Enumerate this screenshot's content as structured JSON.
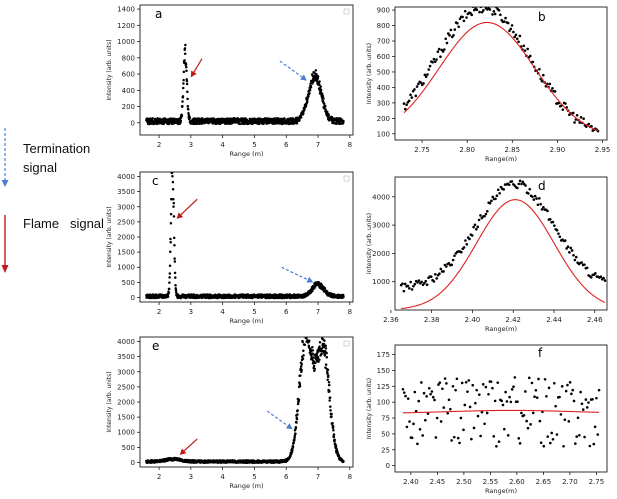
{
  "legend": {
    "termination_label_line1": "Termination",
    "termination_label_line2": "signal",
    "flame_label": "Flame   signal",
    "termination_color": "#4a7fd0",
    "flame_color": "#c01818"
  },
  "colors": {
    "dots": "#000000",
    "fit": "#e02020",
    "axis": "#000000"
  },
  "chart_data": [
    {
      "id": "a",
      "panel_label": "a",
      "type": "scatter",
      "xlabel": "Range (m)",
      "ylabel": "Intensity (arb. units)",
      "xlim": [
        1.4,
        8.1
      ],
      "ylim": [
        -150,
        1450
      ],
      "xticks": [
        2,
        3,
        4,
        5,
        6,
        7,
        8
      ],
      "xticklabels": [
        "2",
        "3",
        "4",
        "5",
        "6",
        "7",
        "8"
      ],
      "yticks": [
        0,
        200,
        400,
        600,
        800,
        1000,
        1200,
        1400
      ],
      "yticklabels": [
        "0",
        "200",
        "400",
        "600",
        "800",
        "1000",
        "1200",
        "1400"
      ],
      "signal": {
        "x_start": 1.6,
        "x_end": 7.8,
        "baseline": 20,
        "noise": 35,
        "peaks": [
          {
            "center": 2.82,
            "height": 870,
            "width": 0.05
          },
          {
            "center": 6.9,
            "height": 560,
            "width": 0.2
          }
        ]
      },
      "arrows": [
        {
          "kind": "flame",
          "tip": [
            3.0,
            560
          ],
          "tail": [
            3.35,
            790
          ]
        },
        {
          "kind": "termination",
          "tip": [
            6.65,
            520
          ],
          "tail": [
            5.8,
            760
          ]
        }
      ]
    },
    {
      "id": "b",
      "panel_label": "b",
      "type": "scatter",
      "xlabel": "Range(m)",
      "ylabel": "Intensity (arb. units)",
      "xlim": [
        2.72,
        2.955
      ],
      "ylim": [
        60,
        920
      ],
      "xticks": [
        2.75,
        2.8,
        2.85,
        2.9,
        2.95
      ],
      "xticklabels": [
        "2.75",
        "2.80",
        "2.85",
        "2.90",
        "2.95"
      ],
      "yticks": [
        100,
        200,
        300,
        400,
        500,
        600,
        700,
        800,
        900
      ],
      "yticklabels": [
        "100",
        "200",
        "300",
        "400",
        "500",
        "600",
        "700",
        "800",
        "900"
      ],
      "points": {
        "x_start": 2.73,
        "x_end": 2.945,
        "peak": 840,
        "center": 2.818,
        "sigma": 0.052,
        "offset": 80,
        "noise": 35
      },
      "fit": {
        "amplitude": 750,
        "center": 2.822,
        "sigma": 0.053,
        "offset": 70
      }
    },
    {
      "id": "c",
      "panel_label": "c",
      "type": "scatter",
      "xlabel": "Range (m)",
      "ylabel": "Intensity (arb. units)",
      "xlim": [
        1.4,
        8.1
      ],
      "ylim": [
        -150,
        4150
      ],
      "xticks": [
        2,
        3,
        4,
        5,
        6,
        7,
        8
      ],
      "xticklabels": [
        "2",
        "3",
        "4",
        "5",
        "6",
        "7",
        "8"
      ],
      "yticks": [
        0,
        500,
        1000,
        1500,
        2000,
        2500,
        3000,
        3500,
        4000
      ],
      "yticklabels": [
        "0",
        "500",
        "1000",
        "1500",
        "2000",
        "2500",
        "3000",
        "3500",
        "4000"
      ],
      "signal": {
        "x_start": 1.6,
        "x_end": 7.8,
        "baseline": 40,
        "noise": 60,
        "peaks": [
          {
            "center": 2.42,
            "height": 4300,
            "width": 0.045
          },
          {
            "center": 7.0,
            "height": 400,
            "width": 0.18
          }
        ]
      },
      "arrows": [
        {
          "kind": "flame",
          "tip": [
            2.55,
            2600
          ],
          "tail": [
            3.2,
            3250
          ]
        },
        {
          "kind": "termination",
          "tip": [
            6.85,
            500
          ],
          "tail": [
            5.85,
            1000
          ]
        }
      ]
    },
    {
      "id": "d",
      "panel_label": "d",
      "type": "scatter",
      "xlabel": "Range(m)",
      "ylabel": "Intensity (arb. units)",
      "xlim": [
        2.362,
        2.466
      ],
      "ylim": [
        0,
        4700
      ],
      "xticks": [
        2.36,
        2.38,
        2.4,
        2.42,
        2.44,
        2.46
      ],
      "xticklabels": [
        "2.36",
        "2.38",
        "2.40",
        "2.42",
        "2.44",
        "2.46"
      ],
      "yticks": [
        1000,
        2000,
        3000,
        4000
      ],
      "yticklabels": [
        "1000",
        "2000",
        "3000",
        "4000"
      ],
      "points": {
        "x_start": 2.365,
        "x_end": 2.465,
        "peak": 3700,
        "center": 2.421,
        "sigma": 0.019,
        "offset": 750,
        "noise": 150
      },
      "fit": {
        "amplitude": 3900,
        "center": 2.421,
        "sigma": 0.019,
        "offset": 0
      }
    },
    {
      "id": "e",
      "panel_label": "e",
      "type": "scatter",
      "xlabel": "Range (m)",
      "ylabel": "Intensity (arb. units)",
      "xlim": [
        1.4,
        8.1
      ],
      "ylim": [
        -150,
        4150
      ],
      "xticks": [
        2,
        3,
        4,
        5,
        6,
        7,
        8
      ],
      "xticklabels": [
        "2",
        "3",
        "4",
        "5",
        "6",
        "7",
        "8"
      ],
      "yticks": [
        0,
        500,
        1000,
        1500,
        2000,
        2500,
        3000,
        3500,
        4000
      ],
      "yticklabels": [
        "0",
        "500",
        "1000",
        "1500",
        "2000",
        "2500",
        "3000",
        "3500",
        "4000"
      ],
      "signal": {
        "x_start": 1.6,
        "x_end": 7.8,
        "baseline": 30,
        "noise": 40,
        "peaks": [
          {
            "center": 2.45,
            "height": 80,
            "width": 0.25
          },
          {
            "center": 6.62,
            "height": 4200,
            "width": 0.2
          },
          {
            "center": 7.15,
            "height": 3800,
            "width": 0.2
          }
        ]
      },
      "arrows": [
        {
          "kind": "flame",
          "tip": [
            2.65,
            250
          ],
          "tail": [
            3.2,
            780
          ]
        },
        {
          "kind": "termination",
          "tip": [
            6.2,
            1100
          ],
          "tail": [
            5.4,
            1700
          ]
        }
      ]
    },
    {
      "id": "f",
      "panel_label": "f",
      "type": "scatter",
      "xlabel": "Range(m)",
      "ylabel": "Intensity (arb. units)",
      "xlim": [
        2.37,
        2.77
      ],
      "ylim": [
        -10,
        190
      ],
      "xticks": [
        2.4,
        2.45,
        2.5,
        2.55,
        2.6,
        2.65,
        2.7,
        2.75
      ],
      "xticklabels": [
        "2.40",
        "2.45",
        "2.50",
        "2.55",
        "2.60",
        "2.65",
        "2.70",
        "2.75"
      ],
      "yticks": [
        0,
        25,
        50,
        75,
        100,
        125,
        150,
        175
      ],
      "yticklabels": [
        "0",
        "25",
        "50",
        "75",
        "100",
        "125",
        "150",
        "175"
      ],
      "points": {
        "x_start": 2.385,
        "x_end": 2.755,
        "peak": 0,
        "center": 2.6,
        "sigma": 0.1,
        "offset": 85,
        "noise": 55
      },
      "fit": {
        "amplitude": 5,
        "center": 2.59,
        "sigma": 0.12,
        "offset": 82
      }
    }
  ]
}
